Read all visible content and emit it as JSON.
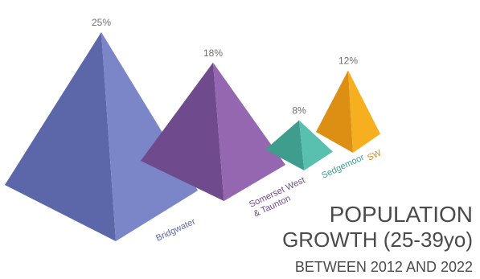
{
  "chart_data": {
    "type": "bar",
    "style": "3d-pyramid",
    "title": [
      "POPULATION",
      "GROWTH (25-39yo)",
      "BETWEEN 2012 AND 2022"
    ],
    "categories": [
      "Bridgwater",
      "Somerset West & Taunton",
      "Sedgemoor",
      "SW"
    ],
    "values": [
      25,
      18,
      8,
      12
    ],
    "value_labels": [
      "25%",
      "18%",
      "8%",
      "12%"
    ],
    "value_unit": "%",
    "colors": {
      "Bridgwater": {
        "light": "#7a86c8",
        "dark": "#5c67aa",
        "label": "#5c67aa"
      },
      "Somerset West & Taunton": {
        "light": "#9467b0",
        "dark": "#6f4a8c",
        "label": "#6f4a8c"
      },
      "Sedgemoor": {
        "light": "#59bfae",
        "dark": "#3e9d8d",
        "label": "#3e9d8d"
      },
      "SW": {
        "light": "#f6b01f",
        "dark": "#dc8f12",
        "label": "#dc8f12"
      }
    },
    "grid": false,
    "legend": "none"
  }
}
